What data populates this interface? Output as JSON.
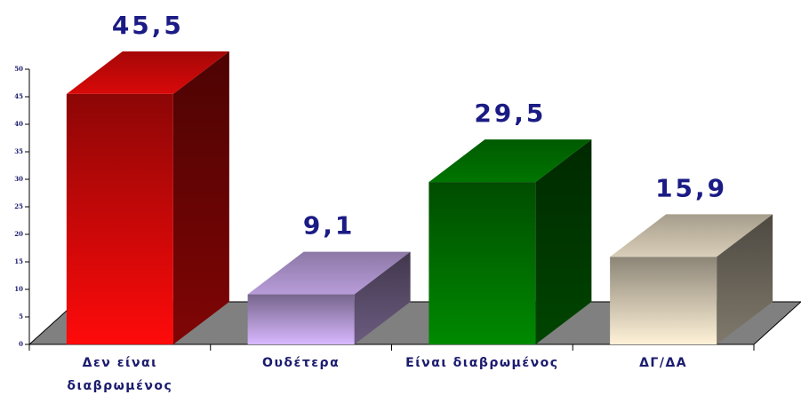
{
  "chart_data": {
    "type": "bar3d",
    "categories": [
      "Δεν είναι\nδιαβρωμένος",
      "Ουδέτερα",
      "Είναι διαβρωμένος",
      "ΔΓ/ΔΑ"
    ],
    "values": [
      45.5,
      9.1,
      29.5,
      15.9
    ],
    "value_labels": [
      "45,5",
      "9,1",
      "29,5",
      "15,9"
    ],
    "colors": [
      "#ff0a0a",
      "#d8b8ff",
      "#008a00",
      "#fff2d8"
    ],
    "ylim": [
      0,
      50
    ],
    "yticks": [
      0,
      5,
      10,
      15,
      20,
      25,
      30,
      35,
      40,
      45,
      50
    ]
  }
}
